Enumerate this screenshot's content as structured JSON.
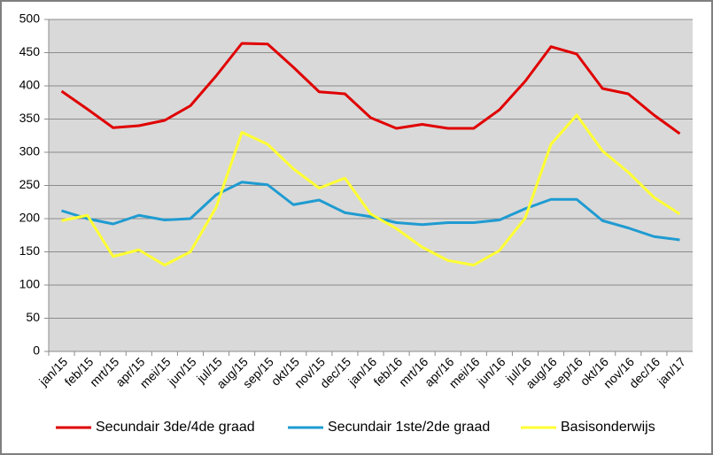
{
  "chart_data": {
    "type": "line",
    "categories": [
      "jan/15",
      "feb/15",
      "mrt/15",
      "apr/15",
      "mei/15",
      "jun/15",
      "jul/15",
      "aug/15",
      "sep/15",
      "okt/15",
      "nov/15",
      "dec/15",
      "jan/16",
      "feb/16",
      "mrt/16",
      "apr/16",
      "mei/16",
      "jun/16",
      "jul/16",
      "aug/16",
      "sep/16",
      "okt/16",
      "nov/16",
      "dec/16",
      "jan/17"
    ],
    "series": [
      {
        "name": "Secundair 3de/4de graad",
        "color": "#e00000",
        "values": [
          392,
          365,
          337,
          340,
          348,
          370,
          415,
          464,
          463,
          428,
          391,
          388,
          352,
          336,
          342,
          336,
          336,
          364,
          407,
          459,
          448,
          396,
          388,
          356,
          328
        ]
      },
      {
        "name": "Secundair 1ste/2de graad",
        "color": "#1f9bd1",
        "values": [
          212,
          200,
          192,
          205,
          198,
          200,
          236,
          255,
          251,
          221,
          228,
          209,
          203,
          194,
          191,
          194,
          194,
          198,
          215,
          229,
          229,
          197,
          186,
          173,
          168
        ]
      },
      {
        "name": "Basisonderwijs",
        "color": "#ffff33",
        "values": [
          197,
          205,
          143,
          153,
          130,
          150,
          217,
          330,
          312,
          275,
          246,
          261,
          207,
          185,
          157,
          137,
          130,
          152,
          201,
          312,
          356,
          302,
          270,
          232,
          207
        ]
      }
    ],
    "ylim": [
      0,
      500
    ],
    "yticks": [
      0,
      50,
      100,
      150,
      200,
      250,
      300,
      350,
      400,
      450,
      500
    ],
    "grid": true,
    "legend": "bottom"
  }
}
